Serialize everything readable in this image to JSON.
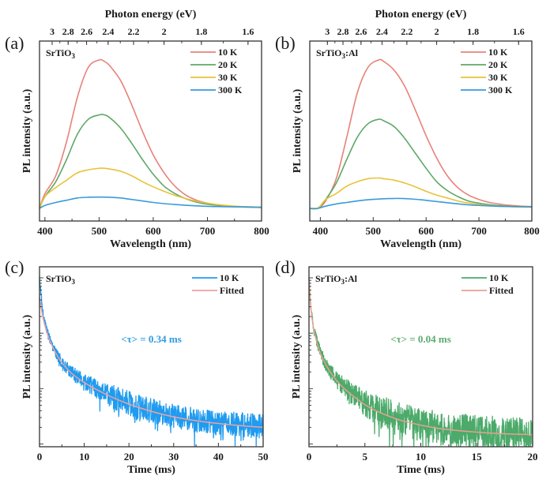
{
  "chart_data": [
    {
      "panel": "(a)",
      "type": "line",
      "sample": "SrTiO3",
      "xlabel": "Wavelength (nm)",
      "ylabel": "PL intensity (a.u.)",
      "top_xlabel": "Photon energy (eV)",
      "xlim": [
        390,
        800
      ],
      "ylim": [
        0,
        1
      ],
      "xticks": [
        400,
        500,
        600,
        700,
        800
      ],
      "top_xticks": [
        "3",
        "2.8",
        "2.6",
        "2.4",
        "2.2",
        "2",
        "1.8",
        "1.6"
      ],
      "legend_position": "top-right",
      "series": [
        {
          "name": "10 K",
          "color": "#e8827a",
          "x": [
            390,
            400,
            420,
            440,
            460,
            480,
            500,
            510,
            520,
            540,
            560,
            580,
            600,
            620,
            640,
            660,
            680,
            700,
            720,
            740,
            760,
            780,
            800
          ],
          "y": [
            0.0,
            0.1,
            0.22,
            0.45,
            0.75,
            0.95,
            1.0,
            0.99,
            0.96,
            0.86,
            0.7,
            0.52,
            0.36,
            0.24,
            0.15,
            0.09,
            0.055,
            0.035,
            0.022,
            0.015,
            0.01,
            0.008,
            0.006
          ]
        },
        {
          "name": "20 K",
          "color": "#5fa866",
          "x": [
            390,
            400,
            420,
            440,
            460,
            480,
            500,
            510,
            520,
            540,
            560,
            580,
            600,
            620,
            640,
            660,
            680,
            700,
            720,
            740,
            760,
            780,
            800
          ],
          "y": [
            0.0,
            0.08,
            0.18,
            0.33,
            0.5,
            0.6,
            0.63,
            0.63,
            0.61,
            0.54,
            0.44,
            0.33,
            0.23,
            0.15,
            0.1,
            0.065,
            0.042,
            0.028,
            0.02,
            0.014,
            0.01,
            0.008,
            0.006
          ]
        },
        {
          "name": "30 K",
          "color": "#e8c23a",
          "x": [
            390,
            400,
            420,
            440,
            460,
            480,
            500,
            510,
            520,
            540,
            560,
            580,
            600,
            620,
            640,
            660,
            680,
            700,
            720,
            740,
            760,
            780,
            800
          ],
          "y": [
            0.0,
            0.08,
            0.14,
            0.19,
            0.24,
            0.26,
            0.27,
            0.27,
            0.265,
            0.25,
            0.22,
            0.18,
            0.145,
            0.115,
            0.088,
            0.066,
            0.048,
            0.035,
            0.025,
            0.018,
            0.013,
            0.01,
            0.008
          ]
        },
        {
          "name": "300 K",
          "color": "#3a9ad9",
          "x": [
            390,
            400,
            420,
            440,
            460,
            480,
            500,
            520,
            540,
            560,
            580,
            600,
            620,
            640,
            660,
            680,
            700,
            720,
            740,
            760,
            780,
            800
          ],
          "y": [
            0.0,
            0.02,
            0.04,
            0.055,
            0.07,
            0.075,
            0.076,
            0.075,
            0.07,
            0.06,
            0.05,
            0.04,
            0.032,
            0.026,
            0.021,
            0.017,
            0.014,
            0.012,
            0.011,
            0.01,
            0.009,
            0.008
          ]
        }
      ]
    },
    {
      "panel": "(b)",
      "type": "line",
      "sample": "SrTiO3:Al",
      "xlabel": "Wavelength (nm)",
      "ylabel": "PL intensity (a.u.)",
      "top_xlabel": "Photon energy (eV)",
      "xlim": [
        380,
        800
      ],
      "ylim": [
        0,
        1
      ],
      "xticks": [
        400,
        500,
        600,
        700,
        800
      ],
      "top_xticks": [
        "3",
        "2.8",
        "2.6",
        "2.4",
        "2.2",
        "2",
        "1.8",
        "1.6"
      ],
      "legend_position": "top-right",
      "series": [
        {
          "name": "10 K",
          "color": "#e8827a",
          "x": [
            380,
            395,
            410,
            430,
            450,
            470,
            490,
            510,
            520,
            540,
            560,
            580,
            600,
            620,
            640,
            660,
            680,
            700,
            720,
            740,
            760,
            780,
            800
          ],
          "y": [
            0.0,
            0.0,
            0.05,
            0.2,
            0.48,
            0.78,
            0.95,
            1.0,
            0.99,
            0.93,
            0.82,
            0.66,
            0.49,
            0.34,
            0.22,
            0.14,
            0.09,
            0.06,
            0.04,
            0.028,
            0.02,
            0.015,
            0.012
          ]
        },
        {
          "name": "20 K",
          "color": "#5fa866",
          "x": [
            380,
            395,
            410,
            430,
            450,
            470,
            490,
            510,
            520,
            540,
            560,
            580,
            600,
            620,
            640,
            660,
            680,
            700,
            720,
            740,
            760,
            780,
            800
          ],
          "y": [
            0.0,
            0.0,
            0.06,
            0.17,
            0.33,
            0.48,
            0.57,
            0.6,
            0.59,
            0.55,
            0.47,
            0.37,
            0.27,
            0.18,
            0.12,
            0.08,
            0.05,
            0.035,
            0.025,
            0.018,
            0.014,
            0.011,
            0.009
          ]
        },
        {
          "name": "30 K",
          "color": "#e8c23a",
          "x": [
            380,
            395,
            410,
            430,
            450,
            470,
            490,
            510,
            520,
            540,
            560,
            580,
            600,
            620,
            640,
            660,
            680,
            700,
            720,
            740,
            760,
            780,
            800
          ],
          "y": [
            0.0,
            0.0,
            0.06,
            0.1,
            0.15,
            0.18,
            0.2,
            0.205,
            0.2,
            0.19,
            0.17,
            0.145,
            0.115,
            0.09,
            0.07,
            0.05,
            0.036,
            0.026,
            0.019,
            0.014,
            0.011,
            0.009,
            0.008
          ]
        },
        {
          "name": "300 K",
          "color": "#3a9ad9",
          "x": [
            380,
            395,
            410,
            430,
            450,
            470,
            490,
            510,
            530,
            550,
            570,
            590,
            610,
            630,
            650,
            670,
            690,
            710,
            730,
            750,
            770,
            800
          ],
          "y": [
            0.0,
            0.0,
            0.015,
            0.03,
            0.04,
            0.05,
            0.058,
            0.063,
            0.066,
            0.067,
            0.064,
            0.058,
            0.05,
            0.042,
            0.034,
            0.027,
            0.022,
            0.018,
            0.015,
            0.013,
            0.012,
            0.01
          ]
        }
      ]
    },
    {
      "panel": "(c)",
      "type": "line",
      "sample": "SrTiO3",
      "xlabel": "Time (ms)",
      "ylabel": "PL intensity (a.u.)",
      "yscale": "log",
      "xlim": [
        0,
        50
      ],
      "xticks": [
        0,
        10,
        20,
        30,
        40,
        50
      ],
      "annotation": "<τ> = 0.34 ms",
      "annotation_color": "#2d9be0",
      "legend_position": "top-right",
      "series": [
        {
          "name": "10 K",
          "color": "#1f9bf0",
          "style": "noisy-data",
          "x": [
            0,
            0.5,
            1,
            2,
            3,
            4,
            5,
            7,
            10,
            15,
            20,
            25,
            30,
            35,
            40,
            45,
            50
          ],
          "y_decades_below_max": [
            0.0,
            0.45,
            0.75,
            1.05,
            1.25,
            1.4,
            1.52,
            1.7,
            1.88,
            2.1,
            2.27,
            2.4,
            2.5,
            2.57,
            2.62,
            2.65,
            2.68
          ],
          "noise_decades": 0.22
        },
        {
          "name": "Fitted",
          "color": "#f0a0a0",
          "style": "fit",
          "x": [
            0,
            0.5,
            1,
            2,
            3,
            4,
            5,
            7,
            10,
            15,
            20,
            25,
            30,
            35,
            40,
            45,
            50
          ],
          "y_decades_below_max": [
            0.35,
            0.6,
            0.8,
            1.07,
            1.26,
            1.41,
            1.53,
            1.71,
            1.89,
            2.11,
            2.28,
            2.41,
            2.51,
            2.58,
            2.63,
            2.67,
            2.7
          ]
        }
      ]
    },
    {
      "panel": "(d)",
      "type": "line",
      "sample": "SrTiO3:Al",
      "xlabel": "Time (ms)",
      "ylabel": "PL intensity (a.u.)",
      "yscale": "log",
      "xlim": [
        0,
        20
      ],
      "xticks": [
        0,
        5,
        10,
        15,
        20
      ],
      "annotation": "<τ> = 0.04 ms",
      "annotation_color": "#5aaa6e",
      "legend_position": "top-right",
      "series": [
        {
          "name": "10 K",
          "color": "#4caa6a",
          "style": "noisy-data",
          "x": [
            0,
            0.2,
            0.5,
            1,
            1.5,
            2,
            3,
            4,
            5,
            6,
            8,
            10,
            12,
            14,
            16,
            18,
            20
          ],
          "y_decades_below_max": [
            0.0,
            0.6,
            1.0,
            1.35,
            1.55,
            1.72,
            1.95,
            2.12,
            2.27,
            2.38,
            2.55,
            2.65,
            2.72,
            2.76,
            2.79,
            2.81,
            2.82
          ],
          "noise_decades": 0.3
        },
        {
          "name": "Fitted",
          "color": "#e8a090",
          "style": "fit",
          "x": [
            0,
            0.2,
            0.5,
            1,
            1.5,
            2,
            3,
            4,
            5,
            6,
            8,
            10,
            12,
            14,
            16,
            18,
            20
          ],
          "y_decades_below_max": [
            0.0,
            0.6,
            1.0,
            1.35,
            1.56,
            1.73,
            1.97,
            2.14,
            2.29,
            2.4,
            2.56,
            2.66,
            2.73,
            2.77,
            2.8,
            2.82,
            2.83
          ]
        }
      ]
    }
  ]
}
